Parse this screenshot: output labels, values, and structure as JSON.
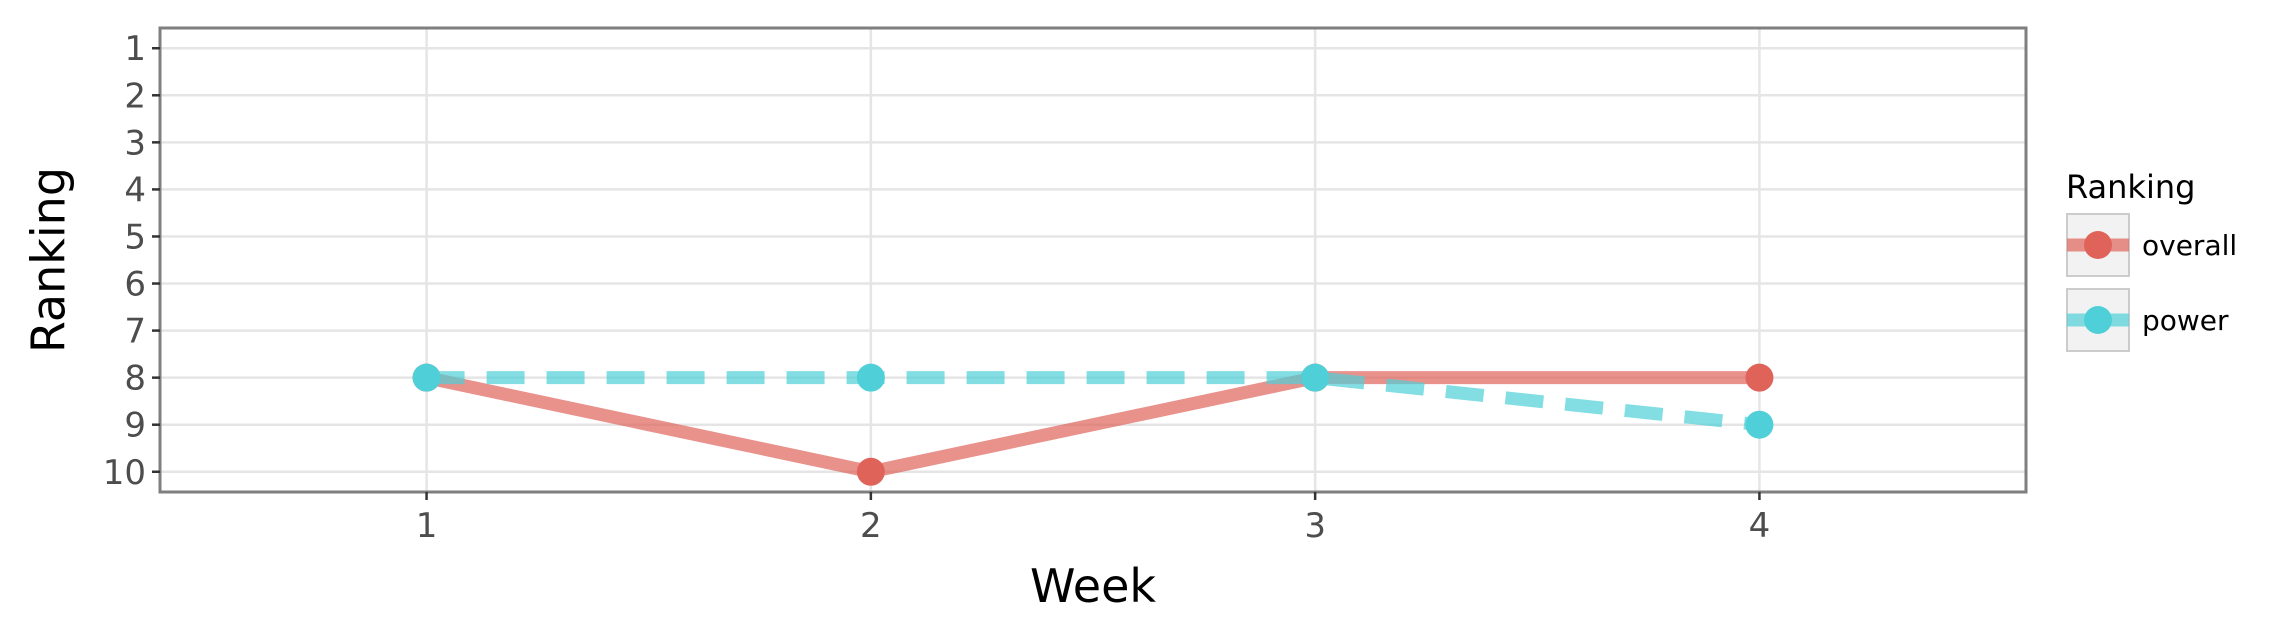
{
  "chart_data": {
    "type": "line",
    "title": "",
    "xlabel": "Week",
    "ylabel": "Ranking",
    "x": [
      1,
      2,
      3,
      4
    ],
    "xlim": [
      0.4,
      4.6
    ],
    "ylim": [
      10.43,
      0.57
    ],
    "xticks": [
      "1",
      "2",
      "3",
      "4"
    ],
    "yticks": [
      "1",
      "2",
      "3",
      "4",
      "5",
      "6",
      "7",
      "8",
      "9",
      "10"
    ],
    "y_reversed": true,
    "grid": true,
    "legend": {
      "title": "Ranking",
      "position": "right"
    },
    "series": [
      {
        "name": "overall",
        "values": [
          8,
          10,
          8,
          8
        ],
        "color": "#e0635a",
        "linestyle": "solid"
      },
      {
        "name": "power",
        "values": [
          8,
          8,
          8,
          9
        ],
        "color": "#4fd0d8",
        "linestyle": "dashed"
      }
    ]
  }
}
